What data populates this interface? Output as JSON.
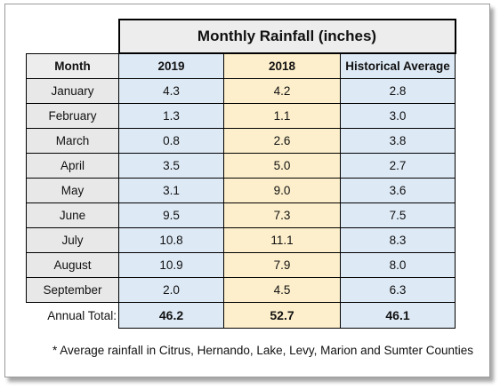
{
  "chart_data": {
    "type": "table",
    "title": "Monthly Rainfall (inches)",
    "columns": [
      "Month",
      "2019",
      "2018",
      "Historical Average"
    ],
    "rows": [
      {
        "month": "January",
        "v2019": "4.3",
        "v2018": "4.2",
        "hist": "2.8"
      },
      {
        "month": "February",
        "v2019": "1.3",
        "v2018": "1.1",
        "hist": "3.0"
      },
      {
        "month": "March",
        "v2019": "0.8",
        "v2018": "2.6",
        "hist": "3.8"
      },
      {
        "month": "April",
        "v2019": "3.5",
        "v2018": "5.0",
        "hist": "2.7"
      },
      {
        "month": "May",
        "v2019": "3.1",
        "v2018": "9.0",
        "hist": "3.6"
      },
      {
        "month": "June",
        "v2019": "9.5",
        "v2018": "7.3",
        "hist": "7.5"
      },
      {
        "month": "July",
        "v2019": "10.8",
        "v2018": "11.1",
        "hist": "8.3"
      },
      {
        "month": "August",
        "v2019": "10.9",
        "v2018": "7.9",
        "hist": "8.0"
      },
      {
        "month": "September",
        "v2019": "2.0",
        "v2018": "4.5",
        "hist": "6.3"
      }
    ],
    "totals": {
      "label": "Annual Total:",
      "v2019": "46.2",
      "v2018": "52.7",
      "hist": "46.1"
    },
    "footnote": "* Average rainfall in Citrus, Hernando, Lake, Levy, Marion and Sumter Counties",
    "colors": {
      "col_2019": "#dde9f5",
      "col_2018": "#fdefcb",
      "col_hist": "#dde9f5",
      "month_col": "#e8e8e8",
      "title_bg": "#ededed"
    }
  }
}
